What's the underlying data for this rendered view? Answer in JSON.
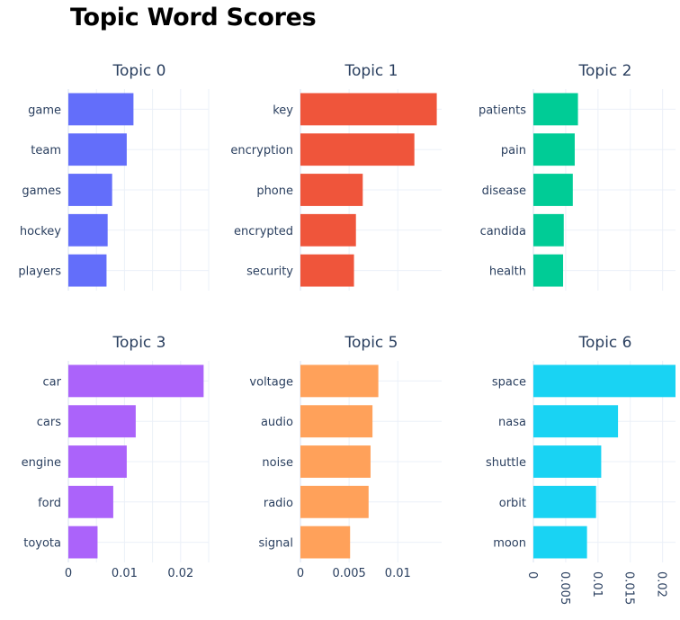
{
  "title": "Topic Word Scores",
  "chart_data": [
    {
      "type": "bar",
      "orientation": "horizontal",
      "title": "Topic 0",
      "categories": [
        "game",
        "team",
        "games",
        "hockey",
        "players"
      ],
      "values": [
        0.0116,
        0.0104,
        0.0078,
        0.007,
        0.0068
      ],
      "xlim": [
        0,
        0.025
      ],
      "xticks": [],
      "grid": true,
      "color": "#636efa"
    },
    {
      "type": "bar",
      "orientation": "horizontal",
      "title": "Topic 1",
      "categories": [
        "key",
        "encryption",
        "phone",
        "encrypted",
        "security"
      ],
      "values": [
        0.014,
        0.0117,
        0.0064,
        0.0057,
        0.0055
      ],
      "xlim": [
        0,
        0.0145
      ],
      "xticks": [],
      "grid": true,
      "color": "#ef553b"
    },
    {
      "type": "bar",
      "orientation": "horizontal",
      "title": "Topic 2",
      "categories": [
        "patients",
        "pain",
        "disease",
        "candida",
        "health"
      ],
      "values": [
        0.0069,
        0.0064,
        0.0061,
        0.0047,
        0.0046
      ],
      "xlim": [
        0,
        0.022
      ],
      "xticks": [],
      "grid": true,
      "color": "#00cc96"
    },
    {
      "type": "bar",
      "orientation": "horizontal",
      "title": "Topic 3",
      "categories": [
        "car",
        "cars",
        "engine",
        "ford",
        "toyota"
      ],
      "values": [
        0.0241,
        0.012,
        0.0104,
        0.008,
        0.0052
      ],
      "xlim": [
        0,
        0.025
      ],
      "xticks": [
        "0",
        "0.01",
        "0.02"
      ],
      "xtick_values": [
        0,
        0.01,
        0.02
      ],
      "grid": true,
      "color": "#ab63fa"
    },
    {
      "type": "bar",
      "orientation": "horizontal",
      "title": "Topic 5",
      "categories": [
        "voltage",
        "audio",
        "noise",
        "radio",
        "signal"
      ],
      "values": [
        0.008,
        0.0074,
        0.0072,
        0.007,
        0.0051
      ],
      "xlim": [
        0,
        0.0145
      ],
      "xticks": [
        "0",
        "0.005",
        "0.01"
      ],
      "xtick_values": [
        0,
        0.005,
        0.01
      ],
      "grid": true,
      "color": "#ffa15a"
    },
    {
      "type": "bar",
      "orientation": "horizontal",
      "title": "Topic 6",
      "categories": [
        "space",
        "nasa",
        "shuttle",
        "orbit",
        "moon"
      ],
      "values": [
        0.022,
        0.0131,
        0.0105,
        0.0097,
        0.0083
      ],
      "xlim": [
        0,
        0.022
      ],
      "xticks": [
        "0",
        "0.005",
        "0.01",
        "0.015",
        "0.02"
      ],
      "xtick_values": [
        0,
        0.005,
        0.01,
        0.015,
        0.02
      ],
      "xtick_rotation": 90,
      "grid": true,
      "color": "#19d3f3"
    }
  ]
}
